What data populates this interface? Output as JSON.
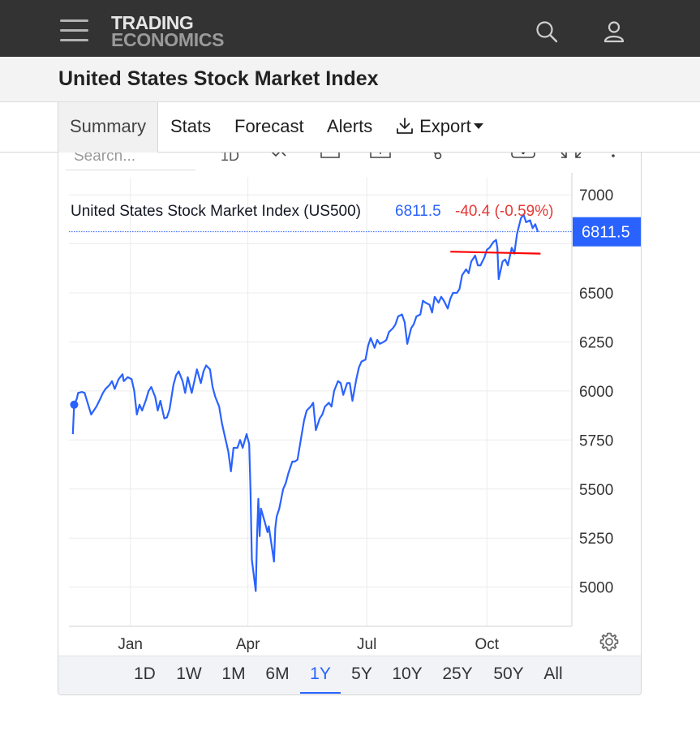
{
  "brand": {
    "line1": "TRADING",
    "line2": "ECONOMICS"
  },
  "page_title": "United States Stock Market Index",
  "tabs": [
    {
      "label": "Summary",
      "active": true
    },
    {
      "label": "Stats"
    },
    {
      "label": "Forecast"
    },
    {
      "label": "Alerts"
    },
    {
      "label": "Export",
      "icon": "download-icon",
      "dropdown": true
    }
  ],
  "toolbar": {
    "search_placeholder": "Search...",
    "interval": "1D"
  },
  "legend": {
    "name": "United States Stock Market Index (US500)",
    "last": "6811.5",
    "change": "-40.4 (-0.59%)"
  },
  "colors": {
    "series": "#2962ff",
    "negative": "#e53935",
    "price_label_bg": "#2962ff",
    "resistance_line": "#ff0000"
  },
  "ranges": [
    "1D",
    "1W",
    "1M",
    "6M",
    "1Y",
    "5Y",
    "10Y",
    "25Y",
    "50Y",
    "All"
  ],
  "active_range": "1Y",
  "chart_data": {
    "type": "line",
    "title": "United States Stock Market Index (US500)",
    "xlabel": "",
    "ylabel": "",
    "ylim": [
      4800,
      7050
    ],
    "y_ticks": [
      5000,
      5250,
      5500,
      5750,
      6000,
      6250,
      6500,
      7000
    ],
    "x_ticks": [
      {
        "label": "Jan",
        "date": "2025-01-01"
      },
      {
        "label": "Apr",
        "date": "2025-04-01"
      },
      {
        "label": "Jul",
        "date": "2025-07-01"
      },
      {
        "label": "Oct",
        "date": "2025-10-01"
      }
    ],
    "xlim": [
      "2024-11-15",
      "2025-12-05"
    ],
    "last_value": 6811.5,
    "grid": true,
    "series": [
      {
        "values": [
          [
            "2024-11-18",
            5780
          ],
          [
            "2024-11-19",
            5930
          ],
          [
            "2024-11-21",
            5960
          ],
          [
            "2024-11-22",
            5990
          ],
          [
            "2024-11-25",
            5995
          ],
          [
            "2024-11-27",
            5990
          ],
          [
            "2024-12-02",
            5880
          ],
          [
            "2024-12-04",
            5900
          ],
          [
            "2024-12-06",
            5920
          ],
          [
            "2024-12-09",
            5960
          ],
          [
            "2024-12-11",
            5990
          ],
          [
            "2024-12-13",
            6010
          ],
          [
            "2024-12-16",
            6030
          ],
          [
            "2024-12-18",
            6050
          ],
          [
            "2024-12-20",
            6010
          ],
          [
            "2024-12-23",
            6060
          ],
          [
            "2024-12-26",
            6085
          ],
          [
            "2024-12-27",
            6050
          ],
          [
            "2024-12-30",
            6070
          ],
          [
            "2025-01-02",
            6060
          ],
          [
            "2025-01-04",
            6000
          ],
          [
            "2025-01-06",
            5880
          ],
          [
            "2025-01-08",
            5930
          ],
          [
            "2025-01-10",
            5900
          ],
          [
            "2025-01-13",
            5955
          ],
          [
            "2025-01-15",
            6000
          ],
          [
            "2025-01-17",
            6020
          ],
          [
            "2025-01-20",
            5970
          ],
          [
            "2025-01-22",
            5900
          ],
          [
            "2025-01-24",
            5950
          ],
          [
            "2025-01-27",
            5860
          ],
          [
            "2025-01-29",
            5865
          ],
          [
            "2025-01-31",
            5905
          ],
          [
            "2025-02-03",
            6030
          ],
          [
            "2025-02-05",
            6080
          ],
          [
            "2025-02-07",
            6100
          ],
          [
            "2025-02-10",
            6050
          ],
          [
            "2025-02-12",
            5990
          ],
          [
            "2025-02-14",
            6070
          ],
          [
            "2025-02-17",
            5990
          ],
          [
            "2025-02-19",
            6050
          ],
          [
            "2025-02-21",
            6110
          ],
          [
            "2025-02-24",
            6040
          ],
          [
            "2025-02-26",
            6100
          ],
          [
            "2025-02-28",
            6130
          ],
          [
            "2025-03-03",
            6110
          ],
          [
            "2025-03-05",
            6020
          ],
          [
            "2025-03-07",
            5970
          ],
          [
            "2025-03-10",
            5920
          ],
          [
            "2025-03-12",
            5840
          ],
          [
            "2025-03-14",
            5780
          ],
          [
            "2025-03-17",
            5690
          ],
          [
            "2025-03-19",
            5590
          ],
          [
            "2025-03-21",
            5710
          ],
          [
            "2025-03-24",
            5710
          ],
          [
            "2025-03-26",
            5750
          ],
          [
            "2025-03-28",
            5710
          ],
          [
            "2025-03-31",
            5780
          ],
          [
            "2025-04-02",
            5730
          ],
          [
            "2025-04-03",
            5500
          ],
          [
            "2025-04-04",
            5140
          ],
          [
            "2025-04-07",
            4980
          ],
          [
            "2025-04-08",
            5260
          ],
          [
            "2025-04-09",
            5450
          ],
          [
            "2025-04-10",
            5260
          ],
          [
            "2025-04-11",
            5400
          ],
          [
            "2025-04-14",
            5330
          ],
          [
            "2025-04-16",
            5280
          ],
          [
            "2025-04-17",
            5310
          ],
          [
            "2025-04-21",
            5130
          ],
          [
            "2025-04-22",
            5300
          ],
          [
            "2025-04-23",
            5360
          ],
          [
            "2025-04-25",
            5400
          ],
          [
            "2025-04-28",
            5500
          ],
          [
            "2025-04-30",
            5530
          ],
          [
            "2025-05-02",
            5580
          ],
          [
            "2025-05-05",
            5640
          ],
          [
            "2025-05-07",
            5640
          ],
          [
            "2025-05-09",
            5650
          ],
          [
            "2025-05-12",
            5770
          ],
          [
            "2025-05-14",
            5850
          ],
          [
            "2025-05-16",
            5900
          ],
          [
            "2025-05-19",
            5920
          ],
          [
            "2025-05-21",
            5940
          ],
          [
            "2025-05-23",
            5800
          ],
          [
            "2025-05-26",
            5860
          ],
          [
            "2025-05-28",
            5880
          ],
          [
            "2025-05-30",
            5920
          ],
          [
            "2025-06-02",
            5940
          ],
          [
            "2025-06-04",
            5920
          ],
          [
            "2025-06-06",
            6000
          ],
          [
            "2025-06-09",
            6050
          ],
          [
            "2025-06-11",
            6040
          ],
          [
            "2025-06-13",
            5980
          ],
          [
            "2025-06-16",
            6040
          ],
          [
            "2025-06-18",
            6040
          ],
          [
            "2025-06-20",
            5950
          ],
          [
            "2025-06-23",
            6060
          ],
          [
            "2025-06-25",
            6120
          ],
          [
            "2025-06-27",
            6150
          ],
          [
            "2025-06-30",
            6160
          ],
          [
            "2025-07-02",
            6230
          ],
          [
            "2025-07-04",
            6270
          ],
          [
            "2025-07-07",
            6220
          ],
          [
            "2025-07-09",
            6260
          ],
          [
            "2025-07-11",
            6240
          ],
          [
            "2025-07-14",
            6250
          ],
          [
            "2025-07-16",
            6260
          ],
          [
            "2025-07-18",
            6300
          ],
          [
            "2025-07-21",
            6320
          ],
          [
            "2025-07-23",
            6340
          ],
          [
            "2025-07-25",
            6380
          ],
          [
            "2025-07-28",
            6390
          ],
          [
            "2025-07-30",
            6350
          ],
          [
            "2025-08-01",
            6240
          ],
          [
            "2025-08-04",
            6320
          ],
          [
            "2025-08-06",
            6340
          ],
          [
            "2025-08-08",
            6380
          ],
          [
            "2025-08-11",
            6390
          ],
          [
            "2025-08-13",
            6460
          ],
          [
            "2025-08-15",
            6450
          ],
          [
            "2025-08-18",
            6440
          ],
          [
            "2025-08-20",
            6400
          ],
          [
            "2025-08-22",
            6480
          ],
          [
            "2025-08-25",
            6450
          ],
          [
            "2025-08-27",
            6480
          ],
          [
            "2025-08-29",
            6460
          ],
          [
            "2025-09-01",
            6420
          ],
          [
            "2025-09-03",
            6470
          ],
          [
            "2025-09-05",
            6500
          ],
          [
            "2025-09-08",
            6500
          ],
          [
            "2025-09-10",
            6520
          ],
          [
            "2025-09-12",
            6590
          ],
          [
            "2025-09-15",
            6620
          ],
          [
            "2025-09-17",
            6600
          ],
          [
            "2025-09-19",
            6660
          ],
          [
            "2025-09-22",
            6690
          ],
          [
            "2025-09-24",
            6640
          ],
          [
            "2025-09-26",
            6640
          ],
          [
            "2025-09-29",
            6680
          ],
          [
            "2025-10-01",
            6720
          ],
          [
            "2025-10-03",
            6730
          ],
          [
            "2025-10-06",
            6760
          ],
          [
            "2025-10-08",
            6770
          ],
          [
            "2025-10-09",
            6730
          ],
          [
            "2025-10-10",
            6570
          ],
          [
            "2025-10-13",
            6660
          ],
          [
            "2025-10-15",
            6670
          ],
          [
            "2025-10-17",
            6640
          ],
          [
            "2025-10-20",
            6730
          ],
          [
            "2025-10-22",
            6700
          ],
          [
            "2025-10-24",
            6800
          ],
          [
            "2025-10-27",
            6880
          ],
          [
            "2025-10-29",
            6900
          ],
          [
            "2025-10-31",
            6860
          ],
          [
            "2025-11-03",
            6870
          ],
          [
            "2025-11-05",
            6830
          ],
          [
            "2025-11-07",
            6850
          ],
          [
            "2025-11-09",
            6811.5
          ]
        ]
      }
    ],
    "markers": [
      {
        "x": "2024-11-19",
        "y": 5930
      }
    ],
    "annotations": [
      {
        "type": "horizontal_price_line",
        "y": 6811.5,
        "style": "dotted"
      },
      {
        "type": "trend_line",
        "from": [
          "2025-09-03",
          6710
        ],
        "to": [
          "2025-11-11",
          6700
        ],
        "color": "#ff0000"
      }
    ]
  }
}
